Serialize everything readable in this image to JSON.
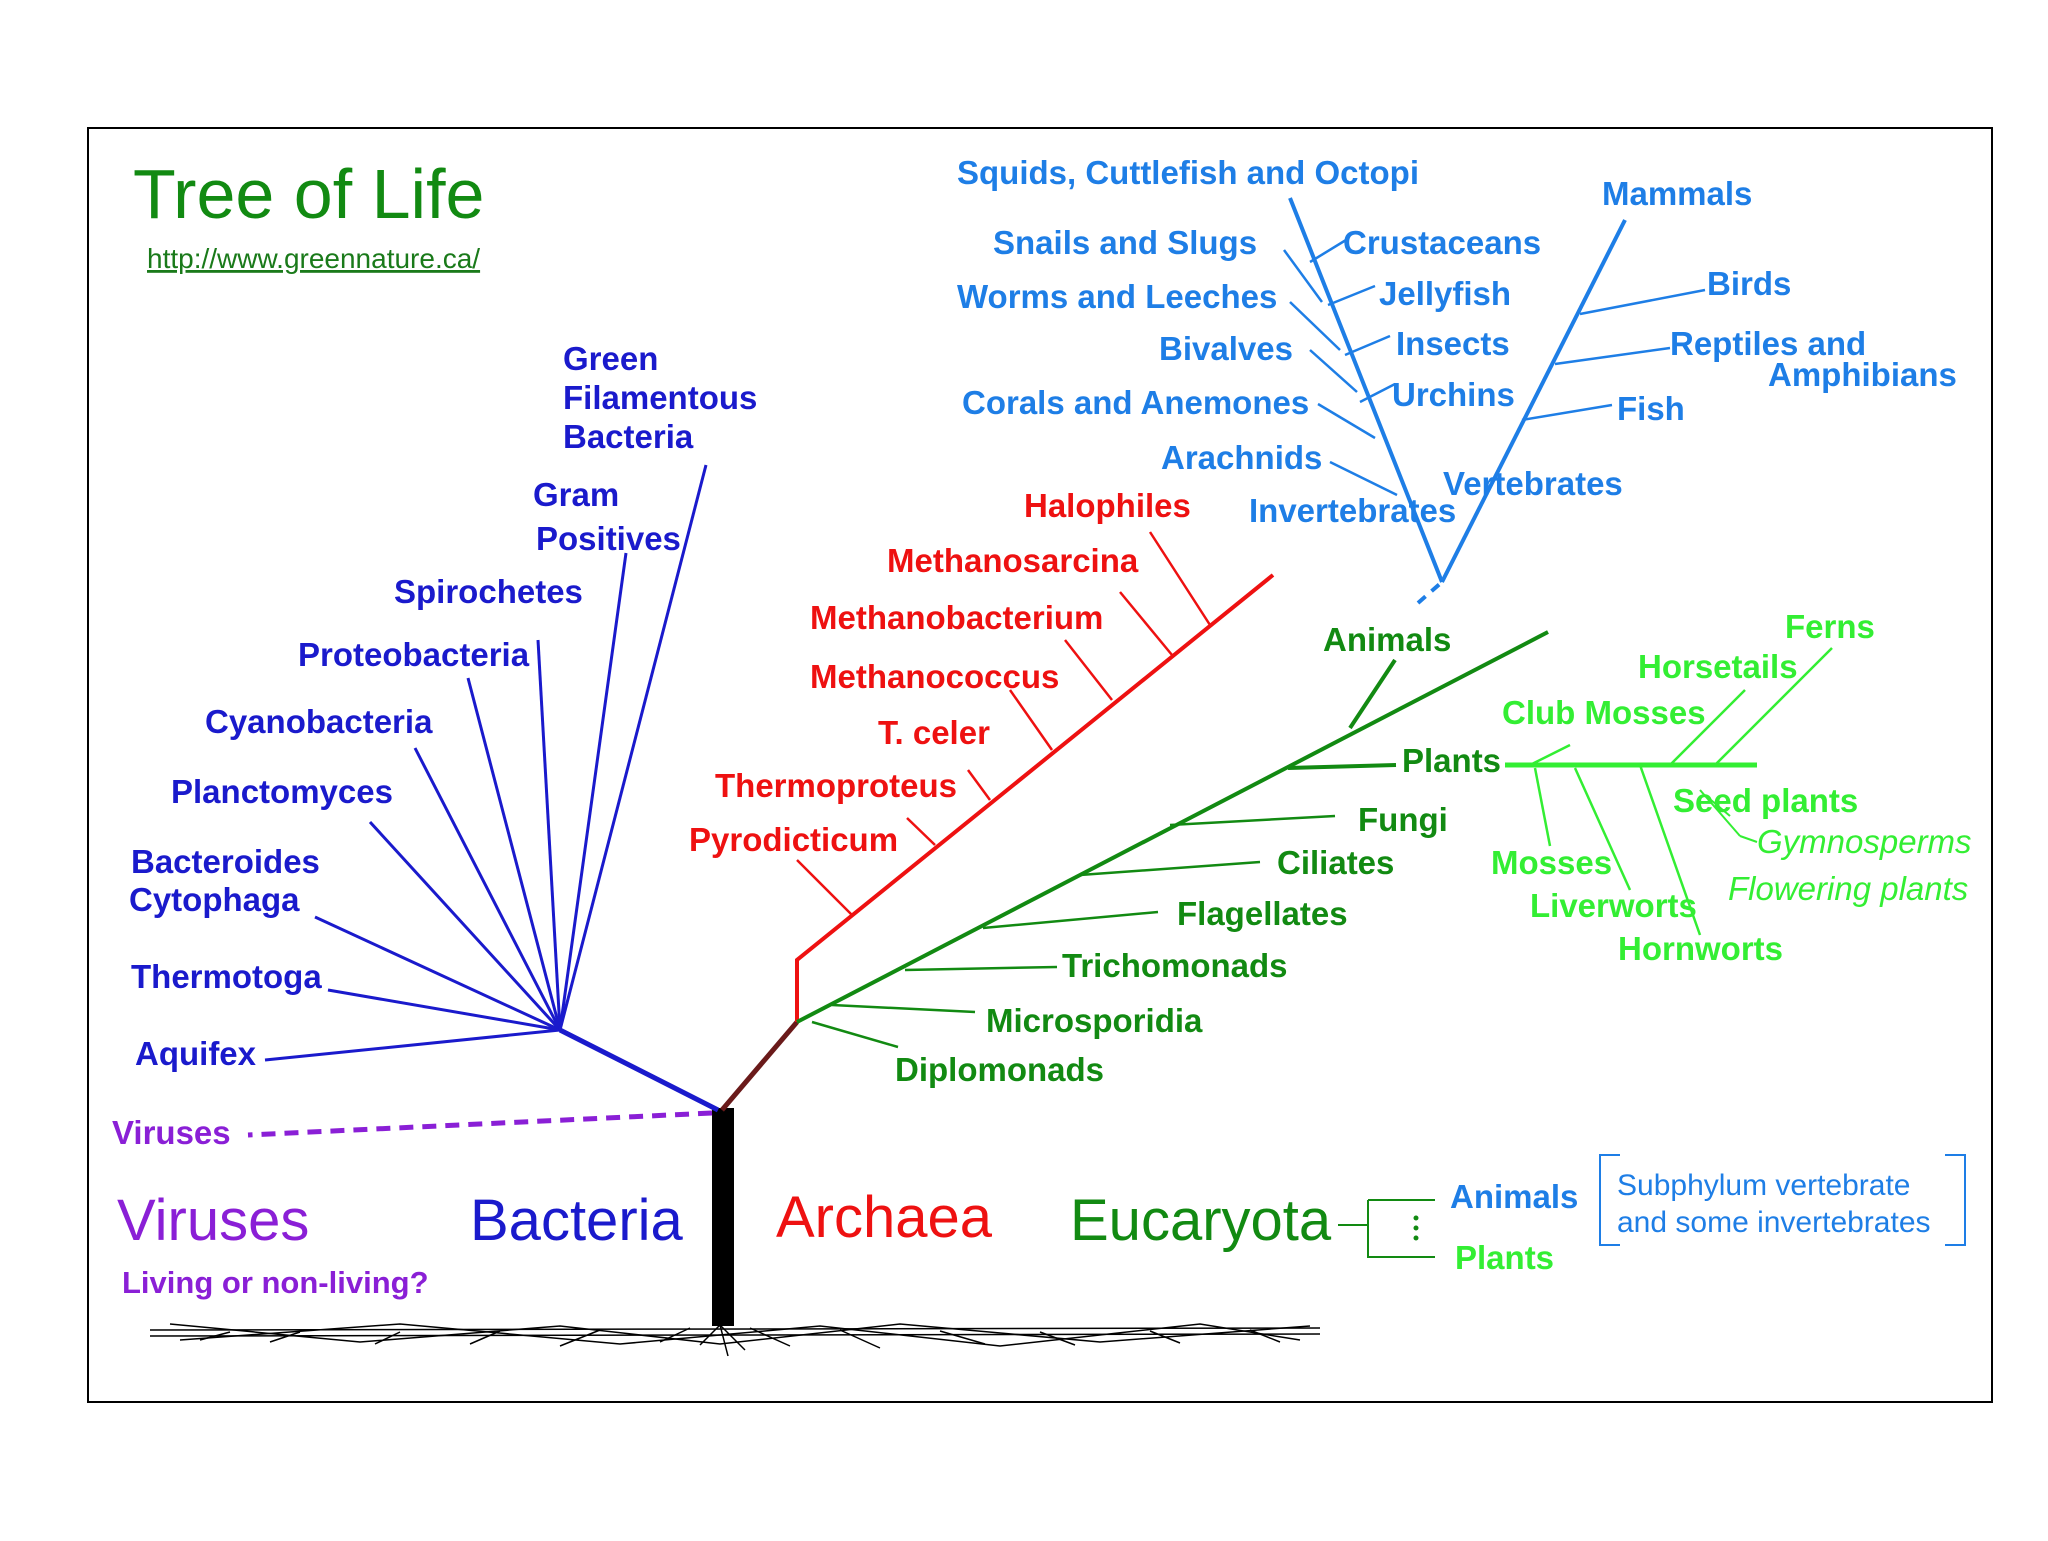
{
  "colors": {
    "bacteria": "#1a1acc",
    "archaea": "#ee1111",
    "eucaryota": "#128a12",
    "plants": "#33ee33",
    "animals": "#1e7ee6",
    "viruses": "#8a1fd6",
    "trunk": "#000000",
    "title": "#128a12",
    "link": "#1a7a1a"
  },
  "header": {
    "title": "Tree of Life",
    "url": "http://www.greennature.ca/"
  },
  "domains": {
    "viruses": "Viruses",
    "viruses_question": "Living or non-living?",
    "bacteria": "Bacteria",
    "archaea": "Archaea",
    "eucaryota": "Eucaryota"
  },
  "bacteria": {
    "viruses_branch": "Viruses",
    "aquifex": "Aquifex",
    "thermotoga": "Thermotoga",
    "bacteroides_1": "Bacteroides",
    "bacteroides_2": "Cytophaga",
    "planctomyces": "Planctomyces",
    "cyanobacteria": "Cyanobacteria",
    "proteobacteria": "Proteobacteria",
    "spirochetes": "Spirochetes",
    "gram_1": "Gram",
    "gram_2": "Positives",
    "green_1": "Green",
    "green_2": "Filamentous",
    "green_3": "Bacteria"
  },
  "archaea": {
    "pyrodicticum": "Pyrodicticum",
    "thermoproteus": "Thermoproteus",
    "t_celer": "T. celer",
    "methanococcus": "Methanococcus",
    "methanobacterium": "Methanobacterium",
    "methanosarcina": "Methanosarcina",
    "halophiles": "Halophiles"
  },
  "eucaryota": {
    "diplomonads": "Diplomonads",
    "microsporidia": "Microsporidia",
    "trichomonads": "Trichomonads",
    "flagellates": "Flagellates",
    "ciliates": "Ciliates",
    "fungi": "Fungi",
    "plants": "Plants",
    "animals": "Animals"
  },
  "plants": {
    "ferns": "Ferns",
    "horsetails": "Horsetails",
    "club_mosses": "Club Mosses",
    "seed_plants": "Seed plants",
    "gymnosperms": "Gymnosperms",
    "flowering_plants": "Flowering plants",
    "mosses": "Mosses",
    "liverworts": "Liverworts",
    "hornworts": "Hornworts"
  },
  "animals": {
    "squids": "Squids, Cuttlefish and Octopi",
    "snails": "Snails and Slugs",
    "worms": "Worms and Leeches",
    "bivalves": "Bivalves",
    "corals": "Corals and Anemones",
    "arachnids": "Arachnids",
    "invertebrates": "Invertebrates",
    "crustaceans": "Crustaceans",
    "jellyfish": "Jellyfish",
    "insects": "Insects",
    "urchins": "Urchins",
    "vertebrates": "Vertebrates",
    "mammals": "Mammals",
    "birds": "Birds",
    "reptiles_1": "Reptiles and",
    "reptiles_2": "Amphibians",
    "fish": "Fish"
  },
  "legend": {
    "animals": "Animals",
    "plants": "Plants",
    "note_1": "Subphylum vertebrate",
    "note_2": "and some invertebrates"
  }
}
